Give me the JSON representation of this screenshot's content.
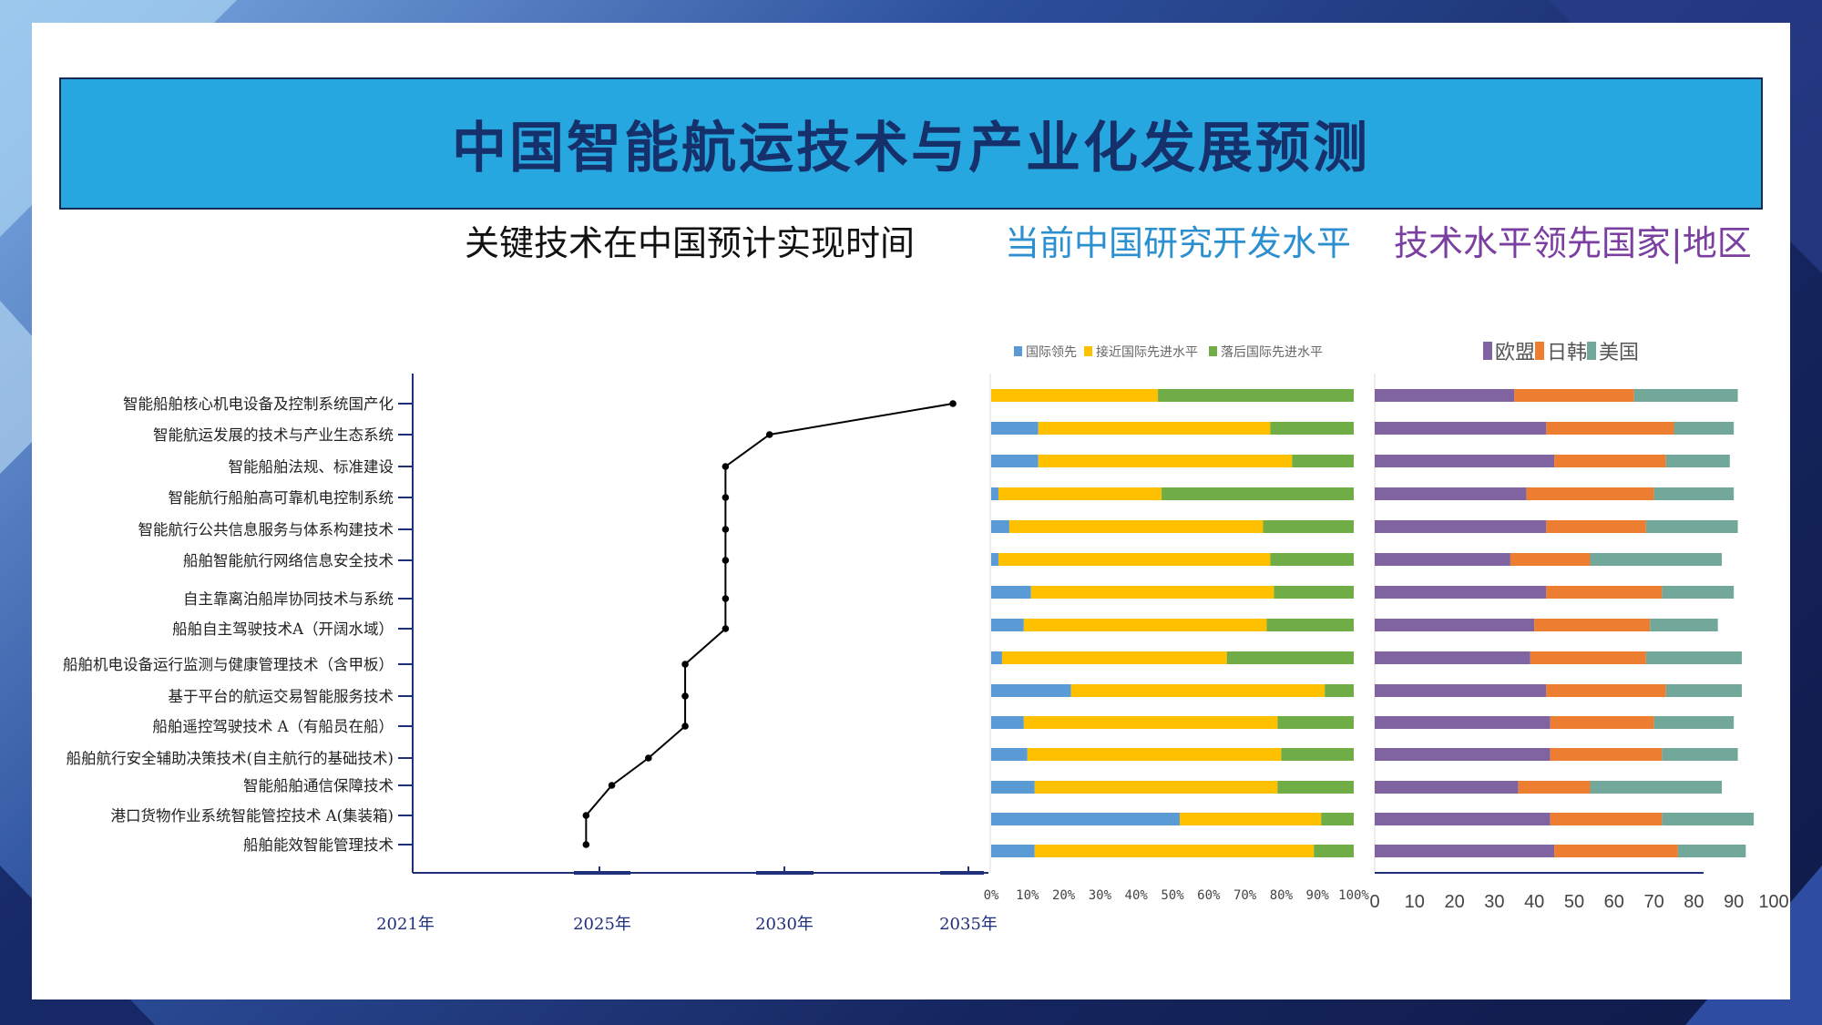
{
  "title": "中国智能航运技术与产业化发展预测",
  "subtitles": [
    "关键技术在中国预计实现时间",
    "当前中国研究开发水平",
    "技术水平领先国家|地区"
  ],
  "colors": {
    "title_bg": "#27a7df",
    "title_text": "#15306b",
    "sub2": "#2b8fd0",
    "sub3": "#7a3fa0",
    "lead": "#5b9bd5",
    "near": "#ffc000",
    "behind": "#70ad47",
    "eu": "#8064a2",
    "jk": "#ed7d31",
    "us": "#72a89a"
  },
  "chart_data": [
    {
      "type": "line",
      "categories": [
        "智能船舶核心机电设备及控制系统国产化",
        "智能航运发展的技术与产业生态系统",
        "智能船舶法规、标准建设",
        "智能航行船舶高可靠机电控制系统",
        "智能航行公共信息服务与体系构建技术",
        "船舶智能航行网络信息安全技术",
        "自主靠离泊船岸协同技术与系统",
        "船舶自主驾驶技术A（开阔水域）",
        "船舶机电设备运行监测与健康管理技术（含甲板）",
        "基于平台的航运交易智能服务技术",
        "船舶遥控驾驶技术 A（有船员在船）",
        "船舶航行安全辅助决策技术(自主航行的基础技术)",
        "智能船舶通信保障技术",
        "港口货物作业系统智能管控技术 A(集装箱)",
        "船舶能效智能管理技术"
      ],
      "x": [
        2035,
        2030,
        2028.8,
        2028.8,
        2028.8,
        2028.8,
        2028.8,
        2028.8,
        2027.7,
        2027.7,
        2027.7,
        2026.7,
        2025.7,
        2025,
        2025
      ],
      "x_ticks": [
        "2021年",
        "2025年",
        "2030年",
        "2035年"
      ],
      "xlim": [
        2020,
        2035
      ]
    },
    {
      "type": "bar",
      "stacked": true,
      "orientation": "horizontal",
      "legend": [
        "国际领先",
        "接近国际先进水平",
        "落后国际先进水平"
      ],
      "series": [
        {
          "name": "国际领先",
          "values": [
            0,
            13,
            13,
            2,
            5,
            2,
            11,
            9,
            3,
            22,
            9,
            10,
            12,
            52,
            12
          ]
        },
        {
          "name": "接近国际先进水平",
          "values": [
            46,
            64,
            70,
            45,
            70,
            75,
            67,
            67,
            62,
            70,
            70,
            70,
            67,
            39,
            77
          ]
        },
        {
          "name": "落后国际先进水平",
          "values": [
            54,
            23,
            17,
            53,
            25,
            23,
            22,
            24,
            35,
            8,
            21,
            20,
            21,
            9,
            11
          ]
        }
      ],
      "x_ticks": [
        "0%",
        "10%",
        "20%",
        "30%",
        "40%",
        "50%",
        "60%",
        "70%",
        "80%",
        "90%",
        "100%"
      ],
      "xlim": [
        0,
        100
      ]
    },
    {
      "type": "bar",
      "stacked": true,
      "orientation": "horizontal",
      "legend": [
        "欧盟",
        "日韩",
        "美国"
      ],
      "series": [
        {
          "name": "欧盟",
          "values": [
            35,
            43,
            45,
            38,
            43,
            34,
            43,
            40,
            39,
            43,
            44,
            44,
            36,
            44,
            45
          ]
        },
        {
          "name": "日韩",
          "values": [
            30,
            32,
            28,
            32,
            25,
            20,
            29,
            29,
            29,
            30,
            26,
            28,
            18,
            28,
            31
          ]
        },
        {
          "name": "美国",
          "values": [
            26,
            15,
            16,
            20,
            23,
            33,
            18,
            17,
            24,
            19,
            20,
            19,
            33,
            23,
            17
          ]
        }
      ],
      "x_ticks": [
        "0",
        "10",
        "20",
        "30",
        "40",
        "50",
        "60",
        "70",
        "80",
        "90",
        "100"
      ],
      "xlim": [
        0,
        100
      ]
    }
  ]
}
